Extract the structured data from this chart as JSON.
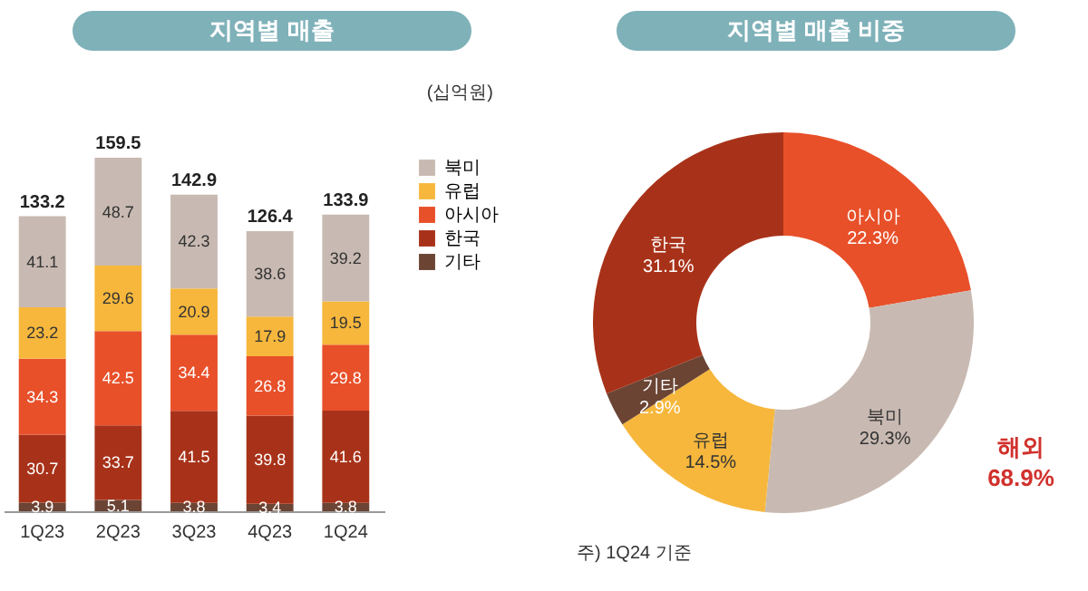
{
  "chart_data": [
    {
      "type": "bar",
      "title": "지역별 매출",
      "categories": [
        "1Q23",
        "2Q23",
        "3Q23",
        "4Q23",
        "1Q24"
      ],
      "stacked": true,
      "data_labels": true,
      "legend": "right",
      "totals": [
        "133.2",
        "159.5",
        "142.9",
        "126.4",
        "133.9"
      ],
      "annotations": [
        "(십억원)"
      ],
      "series": [
        {
          "name": "기타",
          "color": "#6b4434",
          "values": [
            3.9,
            5.1,
            3.8,
            3.4,
            3.8
          ]
        },
        {
          "name": "한국",
          "color": "#a83219",
          "values": [
            30.7,
            33.7,
            41.5,
            39.8,
            41.6
          ]
        },
        {
          "name": "아시아",
          "color": "#e8502a",
          "values": [
            34.3,
            42.5,
            34.4,
            26.8,
            29.8
          ]
        },
        {
          "name": "유럽",
          "color": "#f6b73c",
          "values": [
            23.2,
            29.6,
            20.9,
            17.9,
            19.5
          ]
        },
        {
          "name": "북미",
          "color": "#c8bab2",
          "values": [
            41.1,
            48.7,
            42.3,
            38.6,
            39.2
          ]
        }
      ]
    },
    {
      "type": "donut",
      "title": "지역별 매출 비중",
      "categories": [
        "아시아",
        "북미",
        "유럽",
        "기타",
        "한국"
      ],
      "values": [
        22.3,
        29.3,
        14.5,
        2.9,
        31.1
      ],
      "colors": [
        "#e8502a",
        "#c8bab2",
        "#f6b73c",
        "#6b4434",
        "#a83219"
      ],
      "value_labels": [
        "22.3%",
        "29.3%",
        "14.5%",
        "2.9%",
        "31.1%"
      ],
      "annotations": [
        "해외 68.9%",
        "주) 1Q24 기준"
      ]
    }
  ]
}
